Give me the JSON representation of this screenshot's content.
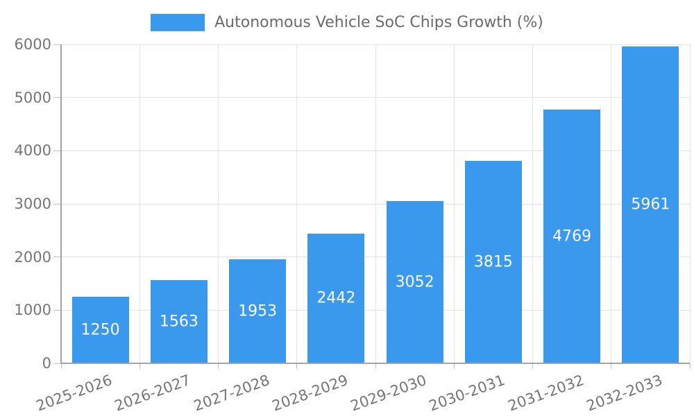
{
  "chart_data": {
    "type": "bar",
    "title": "Autonomous Vehicle SoC Chips Growth (%)",
    "series": [
      {
        "name": "Autonomous Vehicle SoC Chips Growth (%)",
        "values": [
          1250,
          1563,
          1953,
          2442,
          3052,
          3815,
          4769,
          5961
        ]
      }
    ],
    "categories": [
      "2025-2026",
      "2026-2027",
      "2027-2028",
      "2028-2029",
      "2029-2030",
      "2030-2031",
      "2031-2032",
      "2032-2033"
    ],
    "bar_value_labels": [
      "1250",
      "1563",
      "1953",
      "2442",
      "3052",
      "3815",
      "4769",
      "5961"
    ],
    "xlabel": "",
    "ylabel": "",
    "ylim": [
      0,
      6000
    ],
    "yticks": [
      0,
      1000,
      2000,
      3000,
      4000,
      5000,
      6000
    ],
    "grid": "on",
    "legend_position": "top-center",
    "colors": {
      "bar": "#3a99ec",
      "bar_label": "#ffffff",
      "tick_label": "#757575",
      "legend_text": "#6b6b6b",
      "grid": "#e3e3e3",
      "tickmark": "#c2c2c2",
      "axis": "#a3a3a3",
      "background": "#ffffff"
    }
  }
}
